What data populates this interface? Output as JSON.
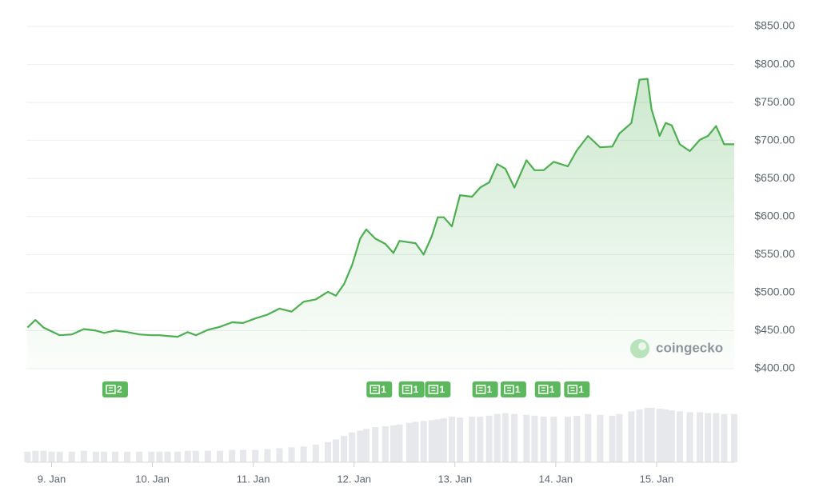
{
  "chart_data": {
    "type": "line",
    "color": "#4caf50",
    "grid": true,
    "watermark": "coingecko",
    "x": [
      8.76,
      8.84,
      8.92,
      9.0,
      9.08,
      9.2,
      9.32,
      9.44,
      9.52,
      9.63,
      9.75,
      9.87,
      9.99,
      10.07,
      10.15,
      10.25,
      10.35,
      10.43,
      10.55,
      10.67,
      10.79,
      10.9,
      11.02,
      11.14,
      11.26,
      11.38,
      11.5,
      11.62,
      11.74,
      11.82,
      11.9,
      11.98,
      12.06,
      12.12,
      12.21,
      12.31,
      12.39,
      12.45,
      12.55,
      12.61,
      12.69,
      12.77,
      12.83,
      12.89,
      12.97,
      13.05,
      13.17,
      13.25,
      13.34,
      13.42,
      13.5,
      13.59,
      13.71,
      13.79,
      13.88,
      13.98,
      14.12,
      14.21,
      14.32,
      14.44,
      14.56,
      14.63,
      14.75,
      14.83,
      14.91,
      14.95,
      15.03,
      15.09,
      15.15,
      15.23,
      15.33,
      15.43,
      15.51,
      15.59,
      15.67,
      15.77
    ],
    "values": [
      454,
      464,
      454,
      449,
      444,
      445,
      452,
      450,
      447,
      450,
      448,
      445,
      444,
      444,
      443,
      442,
      448,
      444,
      451,
      455,
      461,
      460,
      466,
      471,
      479,
      475,
      488,
      491,
      501,
      496,
      511,
      536,
      571,
      583,
      571,
      564,
      552,
      568,
      566,
      565,
      550,
      574,
      599,
      599,
      587,
      628,
      626,
      638,
      645,
      669,
      663,
      638,
      674,
      661,
      661,
      672,
      666,
      687,
      706,
      691,
      692,
      709,
      723,
      780,
      781,
      741,
      706,
      723,
      720,
      695,
      686,
      701,
      706,
      719,
      695,
      695
    ],
    "volume": [
      12,
      13,
      13,
      12,
      12,
      12,
      13,
      12,
      12,
      12,
      12,
      12,
      12,
      12,
      12,
      12,
      13,
      13,
      13,
      13,
      14,
      14,
      14,
      15,
      16,
      17,
      18,
      20,
      23,
      26,
      30,
      34,
      36,
      38,
      40,
      41,
      42,
      43,
      45,
      46,
      47,
      48,
      49,
      50,
      52,
      51,
      52,
      52,
      53,
      55,
      56,
      55,
      54,
      53,
      52,
      52,
      52,
      53,
      55,
      54,
      53,
      55,
      58,
      60,
      62,
      62,
      61,
      60,
      59,
      58,
      57,
      57,
      56,
      56,
      55,
      55
    ],
    "xlim": [
      8.75,
      15.77
    ],
    "ylim": [
      400,
      850
    ],
    "xticks": [
      {
        "value": 9,
        "label": "9. Jan"
      },
      {
        "value": 10,
        "label": "10. Jan"
      },
      {
        "value": 11,
        "label": "11. Jan"
      },
      {
        "value": 12,
        "label": "12. Jan"
      },
      {
        "value": 13,
        "label": "13. Jan"
      },
      {
        "value": 14,
        "label": "14. Jan"
      },
      {
        "value": 15,
        "label": "15. Jan"
      }
    ],
    "yticks": [
      {
        "value": 400,
        "label": "$400.00"
      },
      {
        "value": 450,
        "label": "$450.00"
      },
      {
        "value": 500,
        "label": "$500.00"
      },
      {
        "value": 550,
        "label": "$550.00"
      },
      {
        "value": 600,
        "label": "$600.00"
      },
      {
        "value": 650,
        "label": "$650.00"
      },
      {
        "value": 700,
        "label": "$700.00"
      },
      {
        "value": 750,
        "label": "$750.00"
      },
      {
        "value": 800,
        "label": "$800.00"
      },
      {
        "value": 850,
        "label": "$850.00"
      }
    ],
    "events": [
      {
        "x": 9.63,
        "count": 2
      },
      {
        "x": 12.25,
        "count": 1
      },
      {
        "x": 12.57,
        "count": 1
      },
      {
        "x": 12.83,
        "count": 1
      },
      {
        "x": 13.3,
        "count": 1
      },
      {
        "x": 13.58,
        "count": 1
      },
      {
        "x": 13.92,
        "count": 1
      },
      {
        "x": 14.21,
        "count": 1
      }
    ]
  }
}
